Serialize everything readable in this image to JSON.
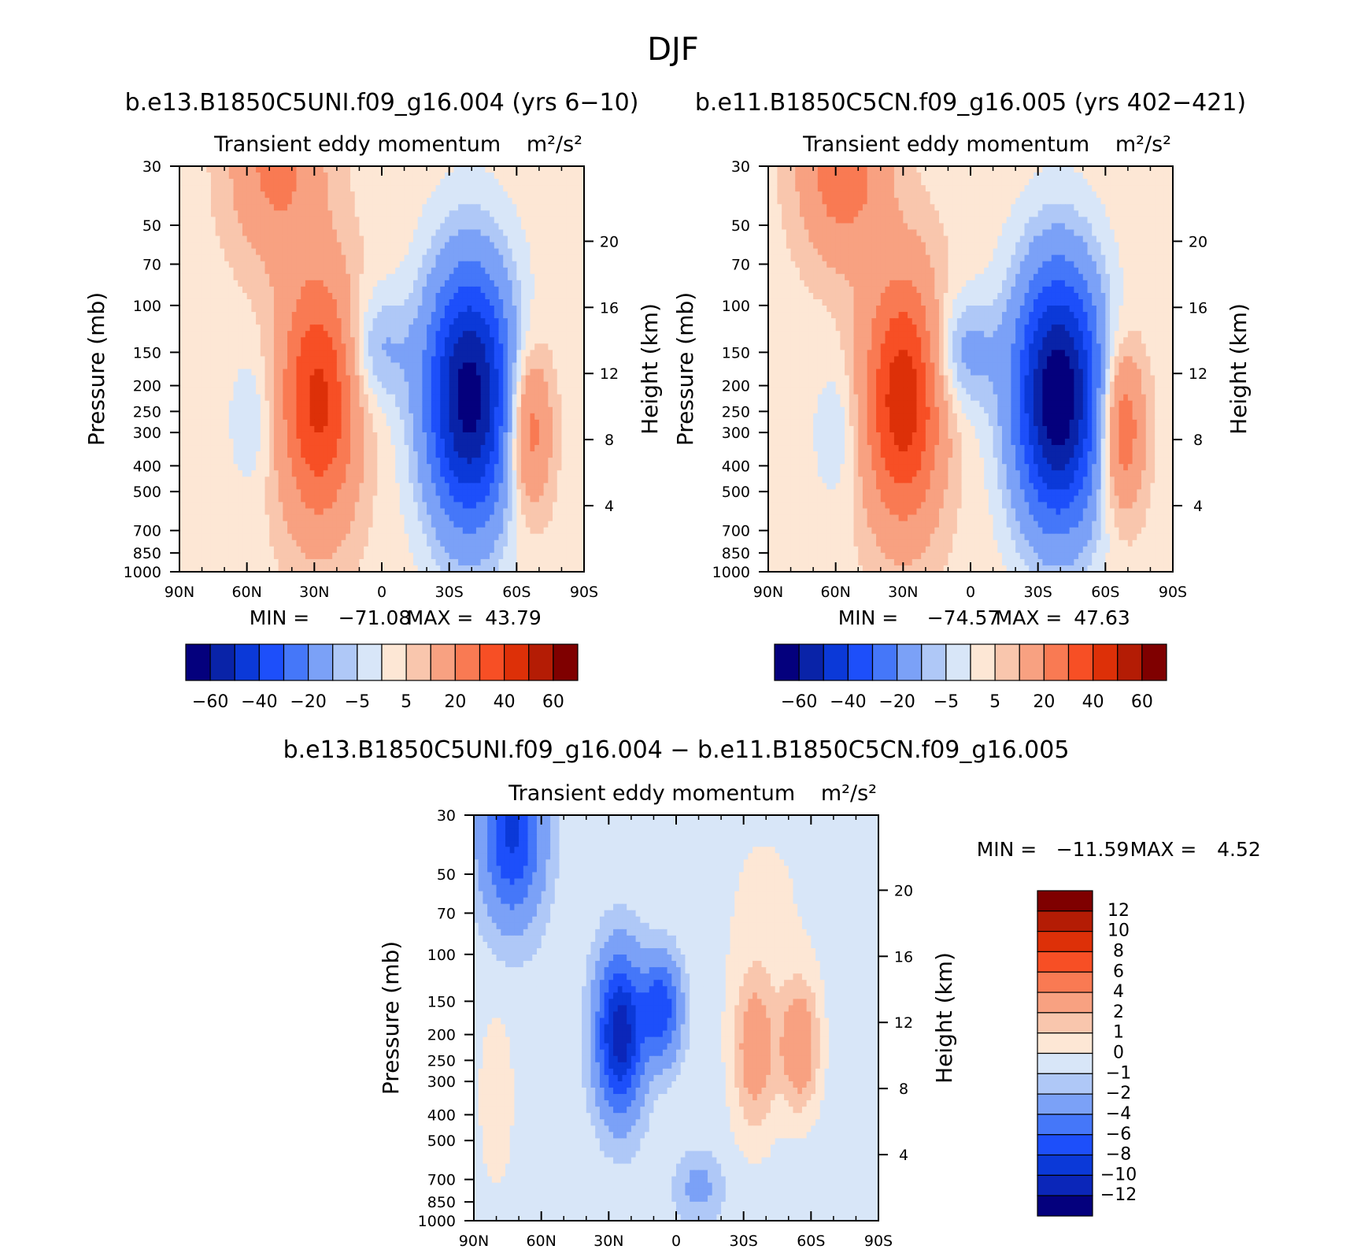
{
  "figure_title": "DJF",
  "chart_data": [
    {
      "type": "heatmap",
      "panel": "case",
      "case_title": "b.e13.B1850C5UNI.f09_g16.004 (yrs 6-10)",
      "variable": "Transient eddy momentum",
      "units": "m²/s²",
      "ylabel_left": "Pressure (mb)",
      "ylabel_right": "Height (km)",
      "x_ticks": [
        "90N",
        "60N",
        "30N",
        "0",
        "30S",
        "60S",
        "90S"
      ],
      "p_ticks": [
        30,
        50,
        70,
        100,
        150,
        200,
        250,
        300,
        400,
        500,
        700,
        850,
        1000
      ],
      "z_ticks": [
        20,
        16,
        12,
        8,
        4
      ],
      "min_label": "MIN =",
      "min_value": "-71.08",
      "max_label": "MAX =",
      "max_value": "43.79",
      "colorbar_orientation": "horizontal",
      "colorbar_labels": [
        "-60",
        "-40",
        "-20",
        "-5",
        "5",
        "20",
        "40",
        "60"
      ],
      "features": [
        {
          "lat": 47,
          "p": 30,
          "value": 20,
          "wlat": 14,
          "wlp": 0.55
        },
        {
          "lat": 28,
          "p": 225,
          "value": 40,
          "wlat": 12,
          "wlp": 0.75
        },
        {
          "lat": -39,
          "p": 220,
          "value": -68,
          "wlat": 14,
          "wlp": 0.8
        },
        {
          "lat": -65,
          "p": 290,
          "value": 28,
          "wlat": 7,
          "wlp": 0.5
        },
        {
          "lat": 2,
          "p": 145,
          "value": -14,
          "wlat": 10,
          "wlp": 0.35
        },
        {
          "lat": 58,
          "p": 270,
          "value": -8,
          "wlat": 7,
          "wlp": 0.4
        }
      ],
      "background": 3
    },
    {
      "type": "heatmap",
      "panel": "control",
      "case_title": "b.e11.B1850C5CN.f09_g16.005 (yrs 402-421)",
      "variable": "Transient eddy momentum",
      "units": "m²/s²",
      "ylabel_left": "Pressure (mb)",
      "ylabel_right": "Height (km)",
      "x_ticks": [
        "90N",
        "60N",
        "30N",
        "0",
        "30S",
        "60S",
        "90S"
      ],
      "p_ticks": [
        30,
        50,
        70,
        100,
        150,
        200,
        250,
        300,
        400,
        500,
        700,
        850,
        1000
      ],
      "z_ticks": [
        20,
        16,
        12,
        8,
        4
      ],
      "min_label": "MIN =",
      "min_value": "-74.57",
      "max_label": "MAX =",
      "max_value": "47.63",
      "colorbar_orientation": "horizontal",
      "colorbar_labels": [
        "-60",
        "-40",
        "-20",
        "-5",
        "5",
        "20",
        "40",
        "60"
      ],
      "features": [
        {
          "lat": 57,
          "p": 30,
          "value": 25,
          "wlat": 13,
          "wlp": 0.55
        },
        {
          "lat": 30,
          "p": 225,
          "value": 44,
          "wlat": 12,
          "wlp": 0.75
        },
        {
          "lat": -39,
          "p": 220,
          "value": -72,
          "wlat": 14,
          "wlp": 0.8
        },
        {
          "lat": -67,
          "p": 290,
          "value": 30,
          "wlat": 7,
          "wlp": 0.5
        },
        {
          "lat": 3,
          "p": 150,
          "value": -16,
          "wlat": 10,
          "wlp": 0.35
        },
        {
          "lat": 60,
          "p": 300,
          "value": -8,
          "wlat": 7,
          "wlp": 0.4
        }
      ],
      "background": 3
    },
    {
      "type": "heatmap",
      "panel": "difference",
      "case_title": "b.e13.B1850C5UNI.f09_g16.004 - b.e11.B1850C5CN.f09_g16.005",
      "variable": "Transient eddy momentum",
      "units": "m²/s²",
      "ylabel_left": "Pressure (mb)",
      "ylabel_right": "Height (km)",
      "x_ticks": [
        "90N",
        "60N",
        "30N",
        "0",
        "30S",
        "60S",
        "90S"
      ],
      "p_ticks": [
        30,
        50,
        70,
        100,
        150,
        200,
        250,
        300,
        400,
        500,
        700,
        850,
        1000
      ],
      "z_ticks": [
        20,
        16,
        12,
        8,
        4
      ],
      "min_label": "MIN =",
      "min_value": "-11.59",
      "max_label": "MAX =",
      "max_value": "4.52",
      "colorbar_orientation": "vertical",
      "colorbar_labels": [
        "12",
        "10",
        "8",
        "6",
        "4",
        "2",
        "1",
        "0",
        "-1",
        "-2",
        "-4",
        "-6",
        "-8",
        "-10",
        "-12"
      ],
      "features": [
        {
          "lat": 73,
          "p": 35,
          "value": -8,
          "wlat": 9,
          "wlp": 0.5
        },
        {
          "lat": 25,
          "p": 200,
          "value": -11,
          "wlat": 7,
          "wlp": 0.45
        },
        {
          "lat": 7,
          "p": 160,
          "value": -7,
          "wlat": 6,
          "wlp": 0.3
        },
        {
          "lat": -55,
          "p": 220,
          "value": 4,
          "wlat": 6,
          "wlp": 0.4
        },
        {
          "lat": -35,
          "p": 230,
          "value": 3.5,
          "wlat": 7,
          "wlp": 0.5
        },
        {
          "lat": 80,
          "p": 350,
          "value": 1.5,
          "wlat": 5,
          "wlp": 0.5
        },
        {
          "lat": -10,
          "p": 750,
          "value": -2,
          "wlat": 7,
          "wlp": 0.2
        },
        {
          "lat": -40,
          "p": 60,
          "value": 0.6,
          "wlat": 18,
          "wlp": 0.7
        }
      ],
      "background": -0.5
    }
  ],
  "colors": {
    "main_palette": [
      "#04007d",
      "#0923a8",
      "#0b39d8",
      "#1d4ffa",
      "#4577f9",
      "#7ba1f7",
      "#afc8f7",
      "#d8e6f8",
      "#fde7d5",
      "#f9c6ad",
      "#f8a181",
      "#f97a53",
      "#f74f25",
      "#dd3008",
      "#b41c05",
      "#7f0000"
    ],
    "diff_palette": [
      "#04007d",
      "#0b26b9",
      "#0b39d8",
      "#1d4ffa",
      "#4577f9",
      "#7ba1f7",
      "#afc8f7",
      "#d8e6f8",
      "#fde7d5",
      "#f9c6ad",
      "#f8a181",
      "#f97a53",
      "#f74f25",
      "#dd3008",
      "#b41c05",
      "#7f0000"
    ]
  }
}
